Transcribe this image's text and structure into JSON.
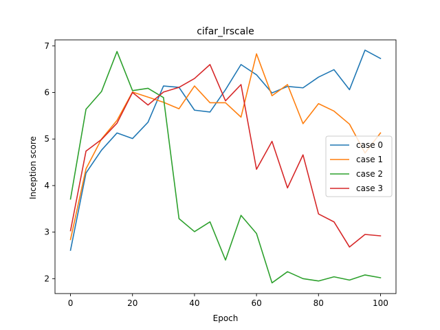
{
  "chart_data": {
    "type": "line",
    "title": "cifar_lrscale",
    "xlabel": "Epoch",
    "ylabel": "Inception score",
    "xlim": [
      -5,
      105
    ],
    "ylim": [
      1.68,
      7.13
    ],
    "xticks": [
      0,
      20,
      40,
      60,
      80,
      100
    ],
    "yticks": [
      2,
      3,
      4,
      5,
      6,
      7
    ],
    "grid": false,
    "legend_position": "right",
    "x": [
      0,
      5,
      10,
      15,
      20,
      25,
      30,
      35,
      40,
      45,
      50,
      55,
      60,
      65,
      70,
      75,
      80,
      85,
      90,
      95,
      100
    ],
    "series": [
      {
        "name": "case 0",
        "color": "#1f77b4",
        "values": [
          2.61,
          4.27,
          4.76,
          5.13,
          5.01,
          5.36,
          6.14,
          6.11,
          5.62,
          5.58,
          6.06,
          6.6,
          6.38,
          5.99,
          6.13,
          6.1,
          6.33,
          6.49,
          6.06,
          6.91,
          6.73
        ]
      },
      {
        "name": "case 1",
        "color": "#ff7f0e",
        "values": [
          2.84,
          4.36,
          5.0,
          5.4,
          6.01,
          5.9,
          5.79,
          5.65,
          6.14,
          5.78,
          5.78,
          5.47,
          6.83,
          5.93,
          6.17,
          5.33,
          5.76,
          5.6,
          5.32,
          4.7,
          5.13
        ]
      },
      {
        "name": "case 2",
        "color": "#2ca02c",
        "values": [
          3.71,
          5.64,
          6.02,
          6.88,
          6.04,
          6.09,
          5.89,
          3.29,
          3.01,
          3.22,
          2.4,
          3.36,
          2.97,
          1.91,
          2.15,
          2.0,
          1.95,
          2.04,
          1.97,
          2.08,
          2.02
        ]
      },
      {
        "name": "case 3",
        "color": "#d62728",
        "values": [
          3.03,
          4.74,
          4.99,
          5.34,
          6.0,
          5.73,
          6.01,
          6.11,
          6.3,
          6.6,
          5.82,
          6.17,
          4.35,
          4.95,
          3.95,
          4.66,
          3.39,
          3.22,
          2.68,
          2.95,
          2.92
        ]
      }
    ]
  }
}
